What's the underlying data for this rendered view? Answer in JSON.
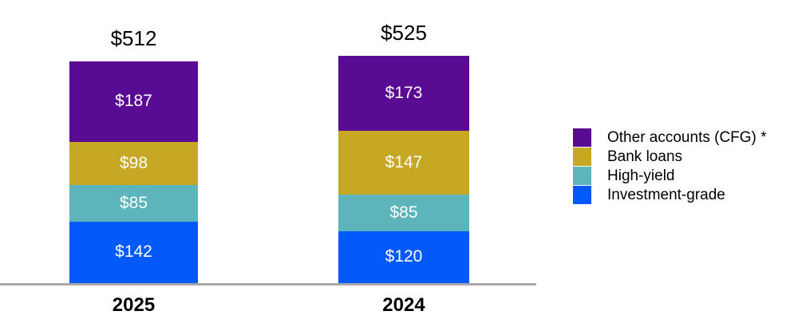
{
  "chart_data": {
    "type": "bar",
    "variant": "stacked-vertical",
    "title": "",
    "categories": [
      "2025",
      "2024"
    ],
    "series": [
      {
        "name": "Other accounts (CFG) *",
        "color": "#5A0B93",
        "values": [
          187,
          173
        ]
      },
      {
        "name": "Bank loans",
        "color": "#C7A824",
        "values": [
          98,
          147
        ]
      },
      {
        "name": "High-yield",
        "color": "#5DB4BA",
        "values": [
          85,
          85
        ]
      },
      {
        "name": "Investment-grade",
        "color": "#0459FA",
        "values": [
          142,
          120
        ]
      }
    ],
    "totals": [
      512,
      525
    ],
    "value_prefix": "$",
    "total_labels": [
      "$512",
      "$525"
    ],
    "segment_labels": [
      [
        "$187",
        "$98",
        "$85",
        "$142"
      ],
      [
        "$173",
        "$147",
        "$85",
        "$120"
      ]
    ],
    "legend": {
      "position": "right",
      "items": [
        "Other accounts (CFG) *",
        "Bank loans",
        "High-yield",
        "Investment-grade"
      ]
    },
    "axis": {
      "baseline_visible": true,
      "baseline_color": "#A9A9A9",
      "gridlines": false,
      "y_axis_labels": false
    },
    "label_colors": {
      "segment": "#FFFFFF",
      "total": "#000000",
      "category": "#000000"
    }
  }
}
